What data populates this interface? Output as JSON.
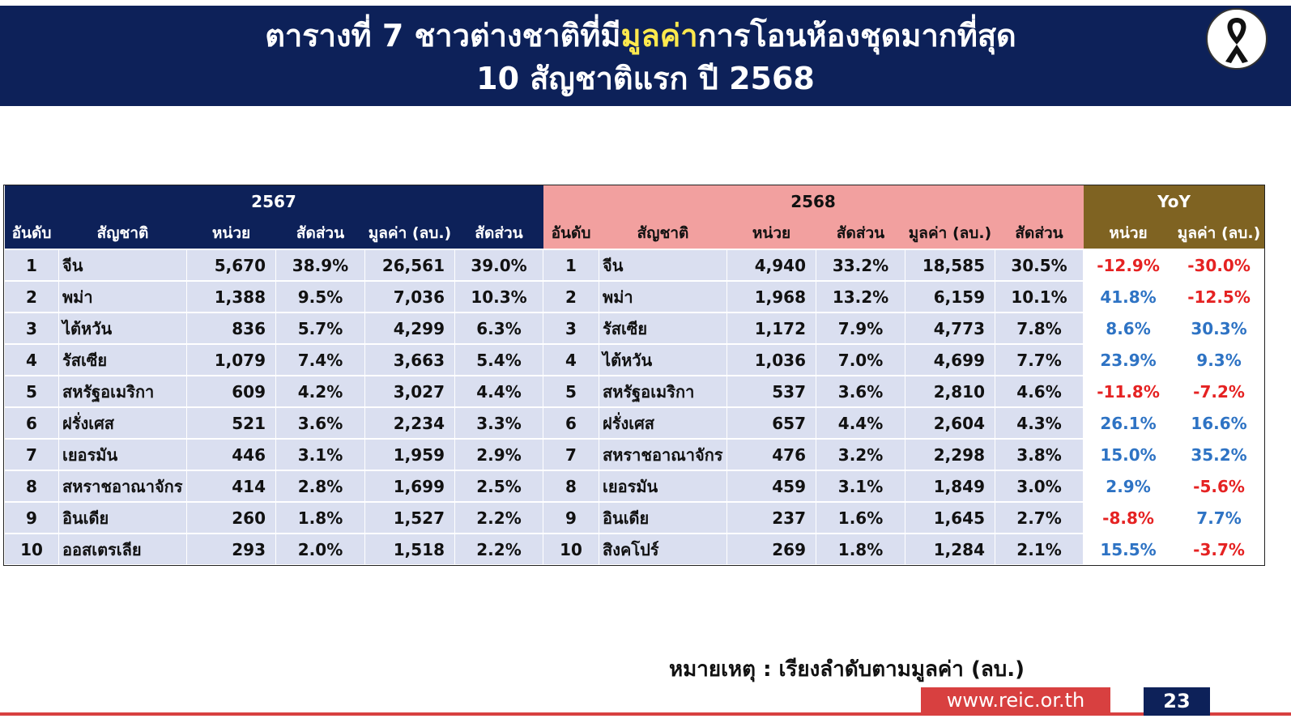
{
  "title": {
    "line1_pre": "ตารางที่ 7 ชาวต่างชาติที่มี",
    "line1_highlight": "มูลค่า",
    "line1_post": "การโอนห้องชุดมากที่สุด",
    "line2": "10 สัญชาติแรก ปี 2568"
  },
  "icon": "black-mourning-ribbon-icon",
  "colors": {
    "header_bg": "#0d2159",
    "highlight": "#ffe94d",
    "group_2568": "#f2a09f",
    "group_yoy": "#7f6322",
    "row_bg": "#dadff0",
    "negative": "#e52222",
    "positive": "#2e73c4",
    "footer_red": "#d84040"
  },
  "table": {
    "groups": {
      "y2567": "2567",
      "y2568": "2568",
      "yoy": "YoY"
    },
    "columns": {
      "rank": "อันดับ",
      "nation": "สัญชาติ",
      "units": "หน่วย",
      "share": "สัดส่วน",
      "value": "มูลค่า (ลบ.)",
      "share2": "สัดส่วน",
      "yoy_units": "หน่วย",
      "yoy_value": "มูลค่า (ลบ.)"
    },
    "rows": [
      {
        "a_rank": "1",
        "a_nation": "จีน",
        "a_units": "5,670",
        "a_share": "38.9%",
        "a_value": "26,561",
        "a_vshare": "39.0%",
        "b_rank": "1",
        "b_nation": "จีน",
        "b_units": "4,940",
        "b_share": "33.2%",
        "b_value": "18,585",
        "b_vshare": "30.5%",
        "yoy_units": "-12.9%",
        "yoy_value": "-30.0%"
      },
      {
        "a_rank": "2",
        "a_nation": "พม่า",
        "a_units": "1,388",
        "a_share": "9.5%",
        "a_value": "7,036",
        "a_vshare": "10.3%",
        "b_rank": "2",
        "b_nation": "พม่า",
        "b_units": "1,968",
        "b_share": "13.2%",
        "b_value": "6,159",
        "b_vshare": "10.1%",
        "yoy_units": "41.8%",
        "yoy_value": "-12.5%"
      },
      {
        "a_rank": "3",
        "a_nation": "ไต้หวัน",
        "a_units": "836",
        "a_share": "5.7%",
        "a_value": "4,299",
        "a_vshare": "6.3%",
        "b_rank": "3",
        "b_nation": "รัสเซีย",
        "b_units": "1,172",
        "b_share": "7.9%",
        "b_value": "4,773",
        "b_vshare": "7.8%",
        "yoy_units": "8.6%",
        "yoy_value": "30.3%"
      },
      {
        "a_rank": "4",
        "a_nation": "รัสเซีย",
        "a_units": "1,079",
        "a_share": "7.4%",
        "a_value": "3,663",
        "a_vshare": "5.4%",
        "b_rank": "4",
        "b_nation": "ไต้หวัน",
        "b_units": "1,036",
        "b_share": "7.0%",
        "b_value": "4,699",
        "b_vshare": "7.7%",
        "yoy_units": "23.9%",
        "yoy_value": "9.3%"
      },
      {
        "a_rank": "5",
        "a_nation": "สหรัฐอเมริกา",
        "a_units": "609",
        "a_share": "4.2%",
        "a_value": "3,027",
        "a_vshare": "4.4%",
        "b_rank": "5",
        "b_nation": "สหรัฐอเมริกา",
        "b_units": "537",
        "b_share": "3.6%",
        "b_value": "2,810",
        "b_vshare": "4.6%",
        "yoy_units": "-11.8%",
        "yoy_value": "-7.2%"
      },
      {
        "a_rank": "6",
        "a_nation": "ฝรั่งเศส",
        "a_units": "521",
        "a_share": "3.6%",
        "a_value": "2,234",
        "a_vshare": "3.3%",
        "b_rank": "6",
        "b_nation": "ฝรั่งเศส",
        "b_units": "657",
        "b_share": "4.4%",
        "b_value": "2,604",
        "b_vshare": "4.3%",
        "yoy_units": "26.1%",
        "yoy_value": "16.6%"
      },
      {
        "a_rank": "7",
        "a_nation": "เยอรมัน",
        "a_units": "446",
        "a_share": "3.1%",
        "a_value": "1,959",
        "a_vshare": "2.9%",
        "b_rank": "7",
        "b_nation": "สหราชอาณาจักร",
        "b_units": "476",
        "b_share": "3.2%",
        "b_value": "2,298",
        "b_vshare": "3.8%",
        "yoy_units": "15.0%",
        "yoy_value": "35.2%"
      },
      {
        "a_rank": "8",
        "a_nation": "สหราชอาณาจักร",
        "a_units": "414",
        "a_share": "2.8%",
        "a_value": "1,699",
        "a_vshare": "2.5%",
        "b_rank": "8",
        "b_nation": "เยอรมัน",
        "b_units": "459",
        "b_share": "3.1%",
        "b_value": "1,849",
        "b_vshare": "3.0%",
        "yoy_units": "2.9%",
        "yoy_value": "-5.6%"
      },
      {
        "a_rank": "9",
        "a_nation": "อินเดีย",
        "a_units": "260",
        "a_share": "1.8%",
        "a_value": "1,527",
        "a_vshare": "2.2%",
        "b_rank": "9",
        "b_nation": "อินเดีย",
        "b_units": "237",
        "b_share": "1.6%",
        "b_value": "1,645",
        "b_vshare": "2.7%",
        "yoy_units": "-8.8%",
        "yoy_value": "7.7%"
      },
      {
        "a_rank": "10",
        "a_nation": "ออสเตรเลีย",
        "a_units": "293",
        "a_share": "2.0%",
        "a_value": "1,518",
        "a_vshare": "2.2%",
        "b_rank": "10",
        "b_nation": "สิงคโปร์",
        "b_units": "269",
        "b_share": "1.8%",
        "b_value": "1,284",
        "b_vshare": "2.1%",
        "yoy_units": "15.5%",
        "yoy_value": "-3.7%"
      }
    ]
  },
  "note": "หมายเหตุ : เรียงลำดับตามมูลค่า (ลบ.)",
  "footer": {
    "url": "www.reic.or.th",
    "page": "23"
  }
}
